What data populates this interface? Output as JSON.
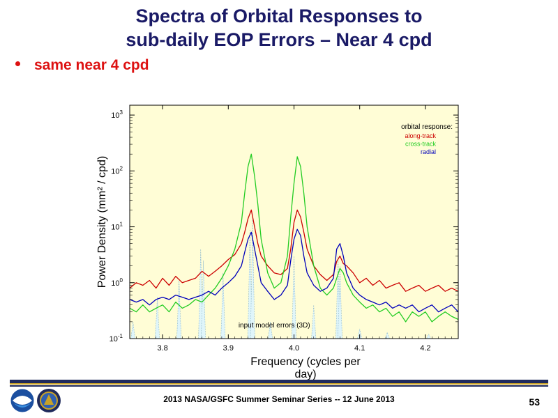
{
  "slide": {
    "title_line1": "Spectra of Orbital Responses to",
    "title_line2": "sub-daily EOP Errors – Near 4 cpd",
    "bullet": "same near 4 cpd",
    "footer": "2013 NASA/GSFC Summer Seminar Series -- 12 June 2013",
    "page_number": "53",
    "colors": {
      "title": "#1a1a66",
      "bullet": "#dd1111",
      "band_navy": "#1f2a5c",
      "band_gold": "#c9a227"
    },
    "logos": [
      "noaa-logo-icon",
      "ngs-seal-icon"
    ]
  },
  "chart_data": {
    "type": "line",
    "title": "",
    "xlabel": "Frequency (cycles per day)",
    "ylabel": "Power Density  (mm² / cpd)",
    "xlim": [
      3.75,
      4.25
    ],
    "ylim": [
      0.1,
      1500
    ],
    "yscale": "log",
    "x_ticks": [
      "3.8",
      "3.9",
      "4.0",
      "4.1",
      "4.2"
    ],
    "y_ticks": [
      {
        "base": "10",
        "exp": "-1"
      },
      {
        "base": "10",
        "exp": "0"
      },
      {
        "base": "10",
        "exp": "1"
      },
      {
        "base": "10",
        "exp": "2"
      },
      {
        "base": "10",
        "exp": "3"
      }
    ],
    "grid": false,
    "background": "#fffdd6",
    "legend": {
      "title": "orbital response:",
      "placement": "top-right",
      "entries": [
        {
          "name": "along-track",
          "color": "#cc0000"
        },
        {
          "name": "cross-track",
          "color": "#22cc22"
        },
        {
          "name": "radial",
          "color": "#0000bb"
        }
      ]
    },
    "annotation": "input model errors (3D)",
    "input_model_errors": {
      "color": "#dff5fa",
      "edge": "#8fb8c8",
      "peaks": [
        {
          "x": 3.755,
          "y": 0.2
        },
        {
          "x": 3.792,
          "y": 0.55
        },
        {
          "x": 3.825,
          "y": 1.2
        },
        {
          "x": 3.858,
          "y": 4.0
        },
        {
          "x": 3.862,
          "y": 2.5
        },
        {
          "x": 3.892,
          "y": 1.5
        },
        {
          "x": 3.933,
          "y": 9.0
        },
        {
          "x": 3.937,
          "y": 14.0
        },
        {
          "x": 3.964,
          "y": 0.2
        },
        {
          "x": 4.0,
          "y": 3.0
        },
        {
          "x": 4.03,
          "y": 0.4
        },
        {
          "x": 4.067,
          "y": 3.0
        },
        {
          "x": 4.07,
          "y": 2.0
        },
        {
          "x": 4.1,
          "y": 0.15
        },
        {
          "x": 4.142,
          "y": 0.13
        },
        {
          "x": 4.205,
          "y": 0.12
        }
      ]
    },
    "series": [
      {
        "name": "along-track",
        "color": "#cc0000",
        "x": [
          3.75,
          3.76,
          3.77,
          3.78,
          3.79,
          3.8,
          3.81,
          3.82,
          3.83,
          3.84,
          3.85,
          3.86,
          3.87,
          3.88,
          3.89,
          3.9,
          3.91,
          3.92,
          3.925,
          3.93,
          3.935,
          3.94,
          3.945,
          3.95,
          3.96,
          3.97,
          3.98,
          3.99,
          3.995,
          4.0,
          4.005,
          4.01,
          4.015,
          4.02,
          4.03,
          4.04,
          4.05,
          4.06,
          4.065,
          4.07,
          4.075,
          4.08,
          4.09,
          4.1,
          4.11,
          4.12,
          4.13,
          4.14,
          4.15,
          4.16,
          4.17,
          4.18,
          4.19,
          4.2,
          4.21,
          4.22,
          4.23,
          4.24,
          4.25
        ],
        "y": [
          0.8,
          1.0,
          0.9,
          1.1,
          0.8,
          1.2,
          0.9,
          1.3,
          1.0,
          1.1,
          1.2,
          1.6,
          1.3,
          1.6,
          2.0,
          2.6,
          3.2,
          5.0,
          8.0,
          14.0,
          20.0,
          10.0,
          5.0,
          3.0,
          2.0,
          1.5,
          1.4,
          1.8,
          4.0,
          12.0,
          20.0,
          15.0,
          8.0,
          4.0,
          2.0,
          1.4,
          1.1,
          1.4,
          2.4,
          3.0,
          2.2,
          2.0,
          1.5,
          1.0,
          1.2,
          0.9,
          1.1,
          0.8,
          0.9,
          1.0,
          0.7,
          0.8,
          0.9,
          0.7,
          0.8,
          0.9,
          0.7,
          0.8,
          0.7
        ]
      },
      {
        "name": "cross-track",
        "color": "#22cc22",
        "x": [
          3.75,
          3.76,
          3.77,
          3.78,
          3.79,
          3.8,
          3.81,
          3.82,
          3.83,
          3.84,
          3.85,
          3.86,
          3.87,
          3.88,
          3.89,
          3.9,
          3.91,
          3.92,
          3.925,
          3.93,
          3.935,
          3.94,
          3.945,
          3.95,
          3.96,
          3.97,
          3.98,
          3.99,
          3.995,
          4.0,
          4.005,
          4.01,
          4.015,
          4.02,
          4.03,
          4.04,
          4.05,
          4.06,
          4.065,
          4.07,
          4.075,
          4.08,
          4.09,
          4.1,
          4.11,
          4.12,
          4.13,
          4.14,
          4.15,
          4.16,
          4.17,
          4.18,
          4.19,
          4.2,
          4.21,
          4.22,
          4.23,
          4.24,
          4.25
        ],
        "y": [
          0.35,
          0.3,
          0.4,
          0.3,
          0.35,
          0.4,
          0.3,
          0.45,
          0.35,
          0.4,
          0.5,
          0.45,
          0.6,
          0.8,
          1.2,
          2.0,
          4.0,
          12.0,
          40.0,
          120.0,
          200.0,
          80.0,
          25.0,
          6.0,
          1.5,
          0.8,
          1.0,
          3.0,
          15.0,
          60.0,
          180.0,
          120.0,
          40.0,
          10.0,
          2.0,
          0.8,
          0.6,
          0.8,
          1.2,
          1.8,
          1.5,
          1.0,
          0.6,
          0.45,
          0.35,
          0.4,
          0.3,
          0.35,
          0.25,
          0.3,
          0.2,
          0.3,
          0.25,
          0.3,
          0.2,
          0.25,
          0.3,
          0.25,
          0.22
        ]
      },
      {
        "name": "radial",
        "color": "#0000bb",
        "x": [
          3.75,
          3.76,
          3.77,
          3.78,
          3.79,
          3.8,
          3.81,
          3.82,
          3.83,
          3.84,
          3.85,
          3.86,
          3.87,
          3.88,
          3.89,
          3.9,
          3.91,
          3.92,
          3.925,
          3.93,
          3.935,
          3.94,
          3.945,
          3.95,
          3.96,
          3.97,
          3.98,
          3.99,
          3.995,
          4.0,
          4.005,
          4.01,
          4.015,
          4.02,
          4.03,
          4.04,
          4.05,
          4.06,
          4.065,
          4.07,
          4.075,
          4.08,
          4.09,
          4.1,
          4.11,
          4.12,
          4.13,
          4.14,
          4.15,
          4.16,
          4.17,
          4.18,
          4.19,
          4.2,
          4.21,
          4.22,
          4.23,
          4.24,
          4.25
        ],
        "y": [
          0.5,
          0.45,
          0.5,
          0.4,
          0.5,
          0.55,
          0.5,
          0.6,
          0.55,
          0.5,
          0.55,
          0.6,
          0.7,
          0.6,
          0.8,
          1.0,
          1.3,
          2.0,
          3.5,
          6.0,
          8.0,
          4.0,
          2.0,
          1.0,
          0.7,
          0.5,
          0.6,
          0.9,
          2.5,
          6.0,
          9.0,
          7.0,
          3.0,
          1.5,
          0.9,
          0.7,
          0.8,
          1.2,
          4.0,
          5.0,
          3.0,
          1.5,
          0.8,
          0.6,
          0.5,
          0.45,
          0.4,
          0.45,
          0.35,
          0.4,
          0.35,
          0.4,
          0.3,
          0.35,
          0.4,
          0.3,
          0.35,
          0.4,
          0.3
        ]
      }
    ]
  }
}
